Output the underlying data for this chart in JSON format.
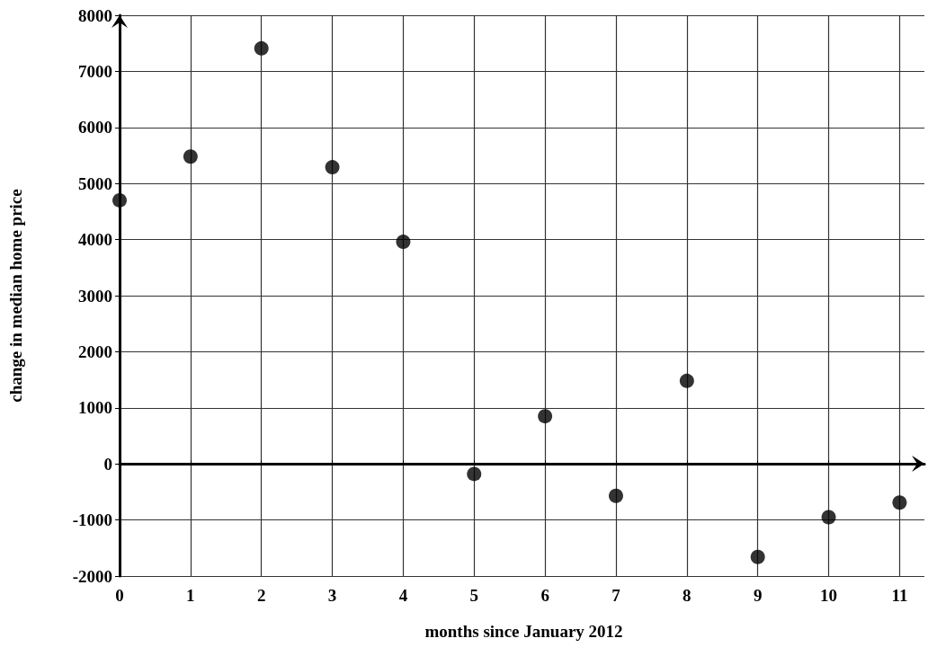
{
  "chart_data": {
    "type": "scatter",
    "xlabel": "months since January 2012",
    "ylabel": "change in median home price",
    "x": [
      0,
      1,
      2,
      3,
      4,
      5,
      6,
      7,
      8,
      9,
      10,
      11
    ],
    "values": [
      4700,
      5480,
      7410,
      5290,
      3960,
      -180,
      850,
      -570,
      1480,
      -1660,
      -950,
      -690
    ],
    "color": "#000000",
    "marker": "circle",
    "xlim": [
      0,
      11.35
    ],
    "xticks": [
      0,
      1,
      2,
      3,
      4,
      5,
      6,
      7,
      8,
      9,
      10,
      11
    ],
    "ylim": [
      -2000,
      8000
    ],
    "yticks": [
      -2000,
      -1000,
      0,
      1000,
      2000,
      3000,
      4000,
      5000,
      6000,
      7000,
      8000
    ],
    "grid": true
  }
}
